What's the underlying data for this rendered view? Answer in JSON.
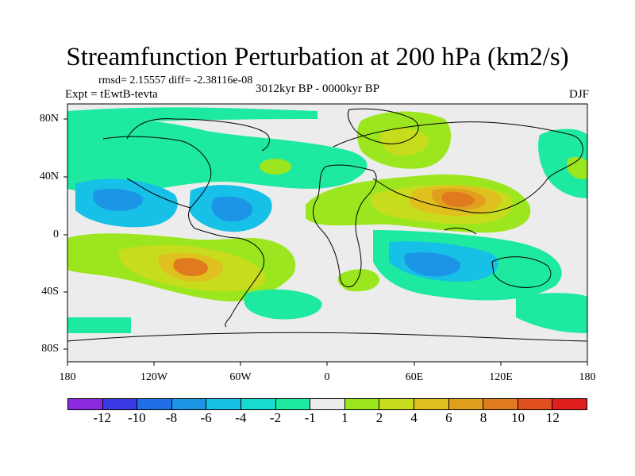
{
  "title": "Streamfunction Perturbation at 200 hPa (km2/s)",
  "stats": "rmsd= 2.15557 diff= -2.38116e-08",
  "experiment": "Expt = tEwtB-tevta",
  "period": "3012kyr BP - 0000kyr BP",
  "season": "DJF",
  "y_ticks": [
    "80N",
    "40N",
    "0",
    "40S",
    "80S"
  ],
  "x_ticks": [
    "180",
    "120W",
    "60W",
    "0",
    "60E",
    "120E",
    "180"
  ],
  "colorbar": {
    "colors": [
      "#8a2be2",
      "#3a3ae6",
      "#1f6fe6",
      "#1c95e6",
      "#16c0e6",
      "#18dbd0",
      "#1ee9a0",
      "#ececec",
      "#9be61e",
      "#c8dc1e",
      "#e0c01e",
      "#e0a01e",
      "#e07a1e",
      "#e0501e",
      "#e01e1e"
    ],
    "labels": [
      "-12",
      "-10",
      "-8",
      "-6",
      "-4",
      "-2",
      "-1",
      "1",
      "2",
      "4",
      "6",
      "8",
      "10",
      "12"
    ]
  }
}
